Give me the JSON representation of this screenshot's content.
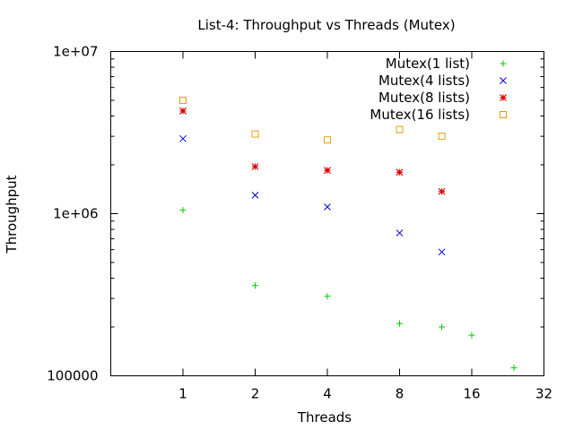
{
  "chart_data": {
    "type": "scatter",
    "title": "List-4: Throughput vs Threads (Mutex)",
    "xlabel": "Threads",
    "ylabel": "Throughput",
    "x_scale": "log2",
    "y_scale": "log10",
    "xlim": [
      0.5,
      32
    ],
    "ylim": [
      100000,
      10000000
    ],
    "x_ticks": [
      {
        "value": 1,
        "label": "1"
      },
      {
        "value": 2,
        "label": "2"
      },
      {
        "value": 4,
        "label": "4"
      },
      {
        "value": 8,
        "label": "8"
      },
      {
        "value": 16,
        "label": "16"
      },
      {
        "value": 32,
        "label": "32"
      }
    ],
    "y_ticks": [
      {
        "value": 100000,
        "label": "100000"
      },
      {
        "value": 1000000,
        "label": "1e+06"
      },
      {
        "value": 10000000,
        "label": "1e+07"
      }
    ],
    "legend_position": "top-right",
    "grid": false,
    "series": [
      {
        "name": "Mutex(1 list)",
        "marker": "plus",
        "color": "#00cc00",
        "points": [
          [
            1,
            1050000
          ],
          [
            2,
            360000
          ],
          [
            4,
            310000
          ],
          [
            8,
            210000
          ],
          [
            12,
            200000
          ],
          [
            16,
            178000
          ],
          [
            24,
            112000
          ]
        ]
      },
      {
        "name": "Mutex(4 lists)",
        "marker": "cross",
        "color": "#0000cc",
        "points": [
          [
            1,
            2900000
          ],
          [
            2,
            1300000
          ],
          [
            4,
            1100000
          ],
          [
            8,
            760000
          ],
          [
            12,
            580000
          ]
        ]
      },
      {
        "name": "Mutex(8 lists)",
        "marker": "star",
        "color": "#dd0000",
        "points": [
          [
            1,
            4300000
          ],
          [
            2,
            1950000
          ],
          [
            4,
            1850000
          ],
          [
            8,
            1800000
          ],
          [
            12,
            1370000
          ]
        ]
      },
      {
        "name": "Mutex(16 lists)",
        "marker": "square",
        "color": "#e69f00",
        "points": [
          [
            1,
            5000000
          ],
          [
            2,
            3100000
          ],
          [
            4,
            2850000
          ],
          [
            8,
            3300000
          ],
          [
            12,
            3000000
          ]
        ]
      }
    ]
  }
}
